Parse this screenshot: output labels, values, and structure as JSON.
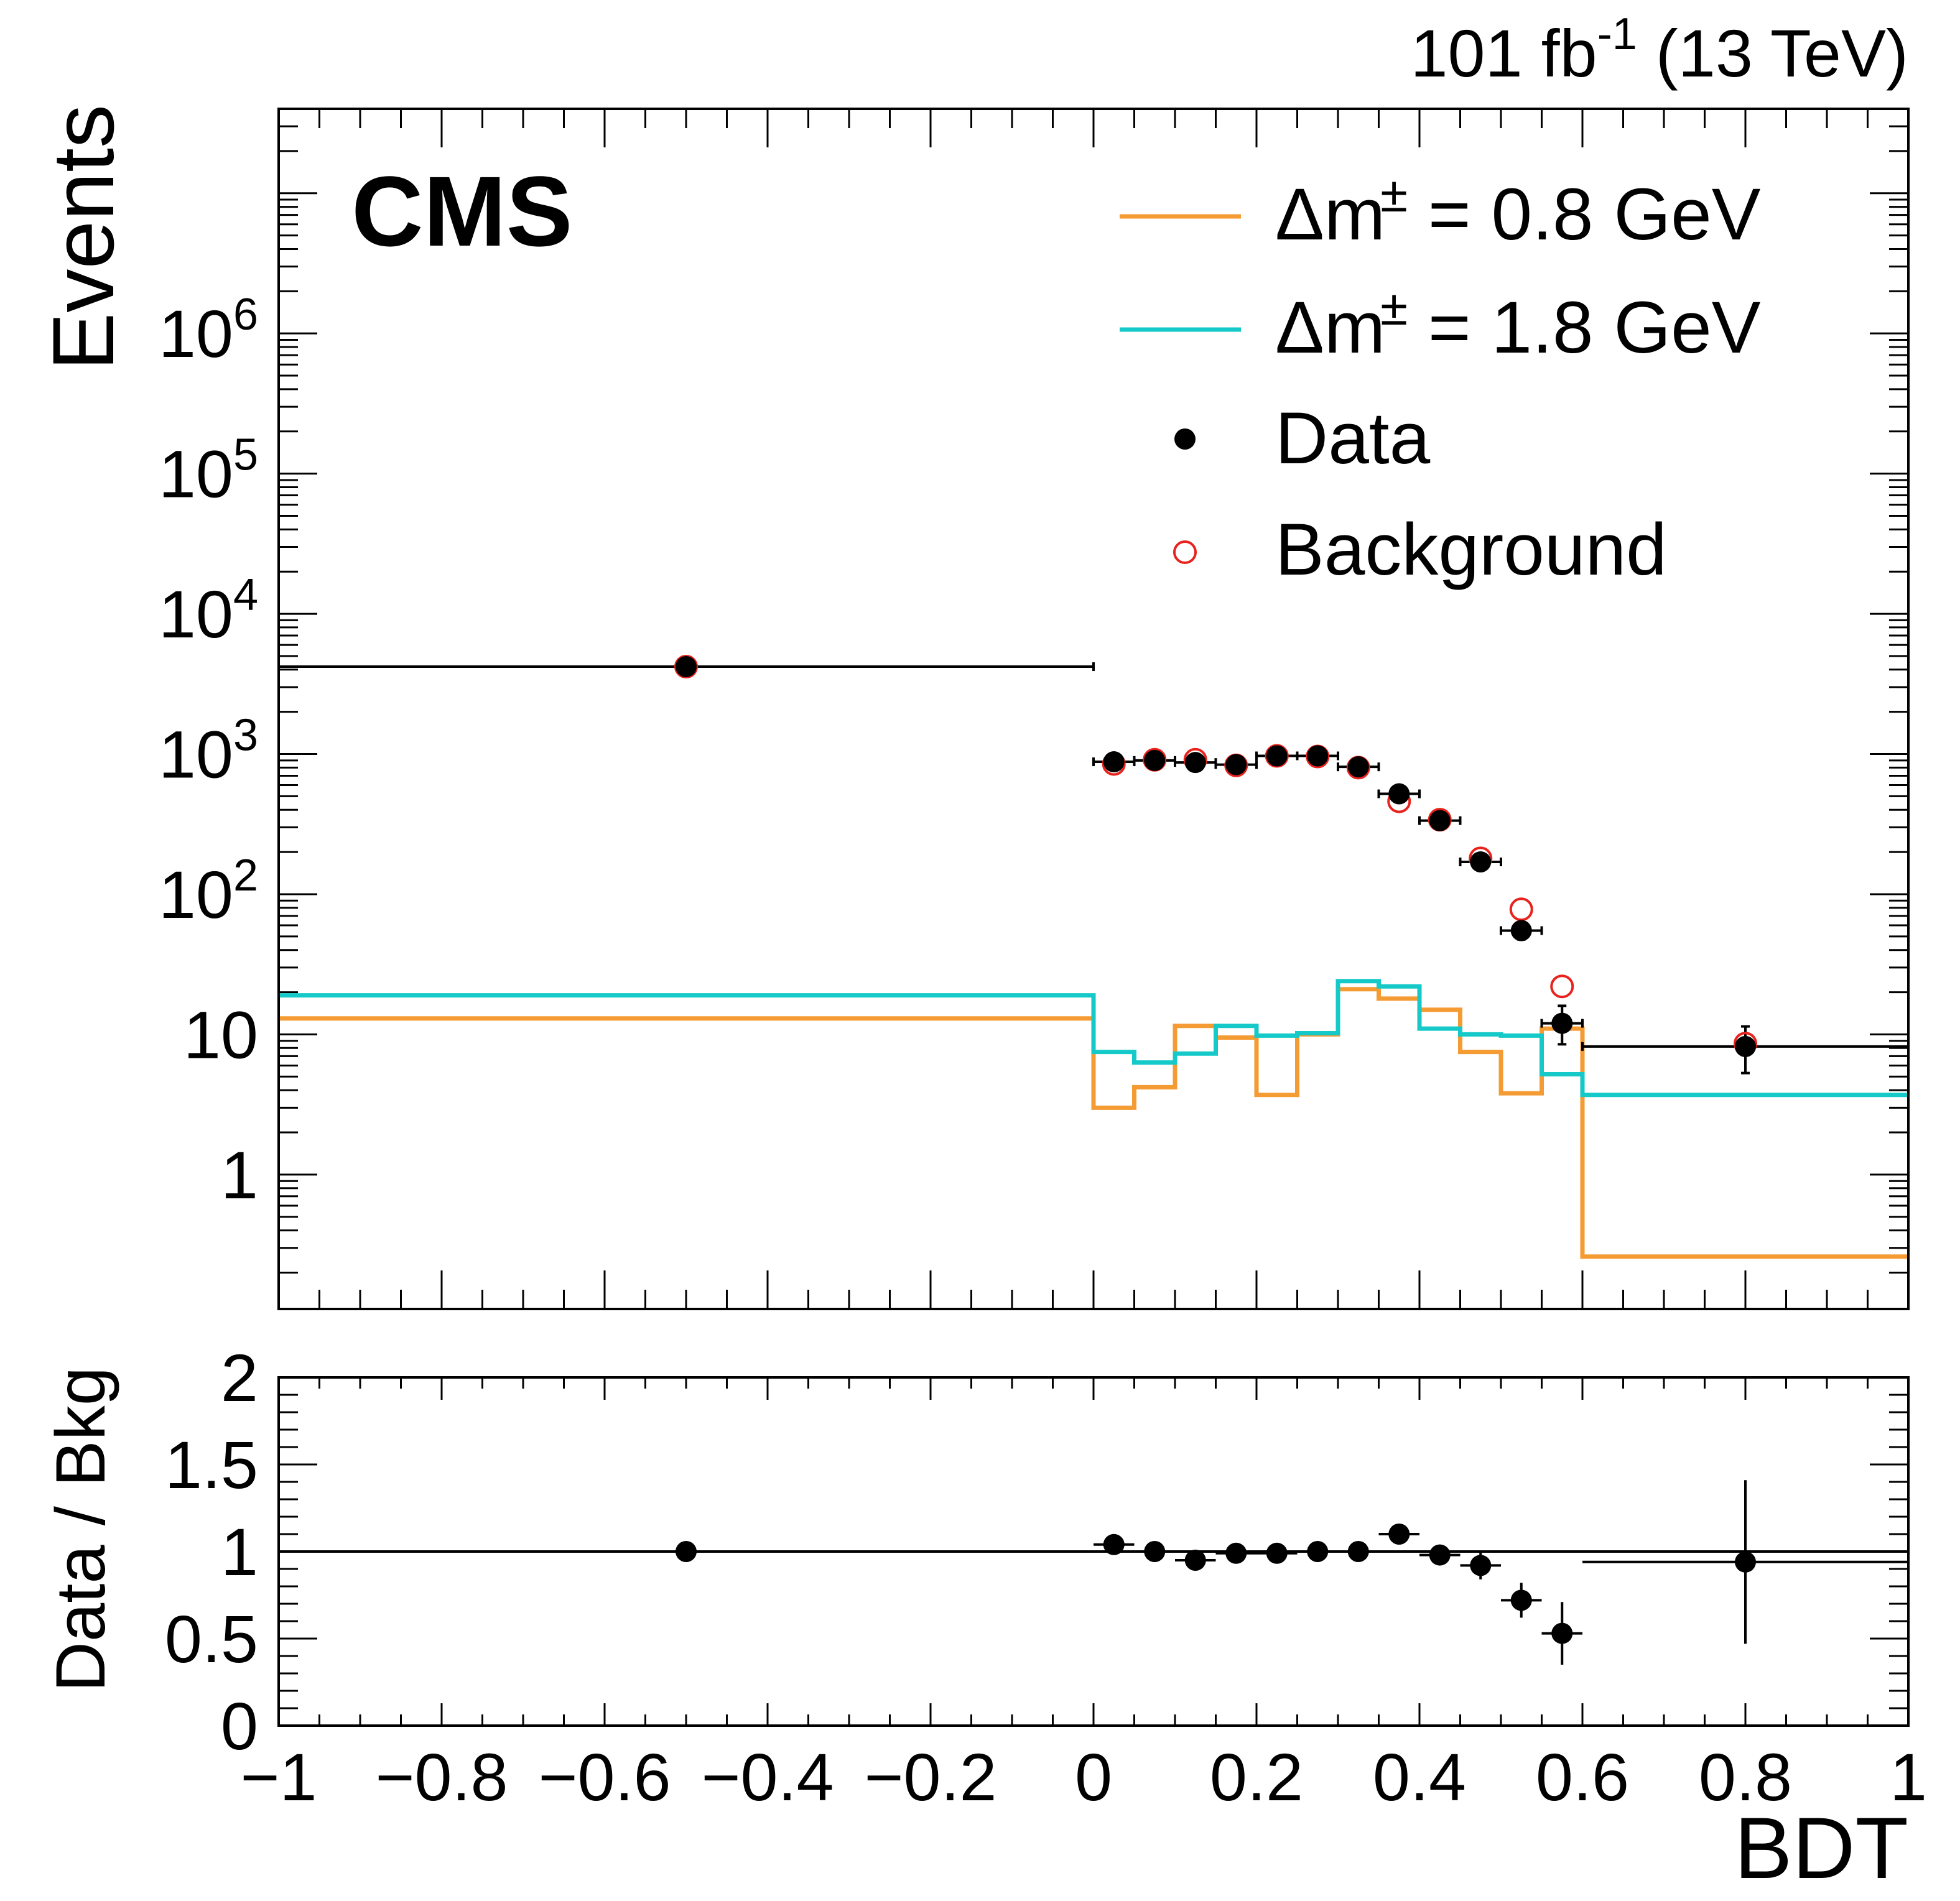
{
  "chart_data": [
    {
      "panel": "main",
      "type": "scatter",
      "title_left": "CMS",
      "lumi_label": "101 fb",
      "lumi_exp": "-1",
      "lumi_energy": " (13 TeV)",
      "ylabel": "Events",
      "xlim": [
        -1,
        1
      ],
      "ylim": [
        0.11,
        40000000
      ],
      "yscale": "log",
      "y_ticks": [
        {
          "value": 1,
          "base": "1",
          "exp": ""
        },
        {
          "value": 10,
          "base": "10",
          "exp": ""
        },
        {
          "value": 100,
          "base": "10",
          "exp": "2"
        },
        {
          "value": 1000,
          "base": "10",
          "exp": "3"
        },
        {
          "value": 10000,
          "base": "10",
          "exp": "4"
        },
        {
          "value": 100000,
          "base": "10",
          "exp": "5"
        },
        {
          "value": 1000000,
          "base": "10",
          "exp": "6"
        }
      ],
      "legend_position": "top-right",
      "series": [
        {
          "name": "signal_08",
          "legend_label": "Δm",
          "legend_sup": "±",
          "legend_suffix": " = 0.8 GeV",
          "kind": "step",
          "color": "#f59b33",
          "edges": [
            -1,
            0,
            0.05,
            0.1,
            0.15,
            0.2,
            0.25,
            0.3,
            0.35,
            0.4,
            0.45,
            0.5,
            0.55,
            0.6,
            1
          ],
          "values": [
            13,
            3.0,
            4.2,
            11.5,
            9.5,
            3.7,
            10.0,
            21,
            18,
            15,
            7.5,
            3.8,
            11,
            0.26
          ]
        },
        {
          "name": "signal_18",
          "legend_label": "Δm",
          "legend_sup": "±",
          "legend_suffix": " = 1.8 GeV",
          "kind": "step",
          "color": "#15c9c9",
          "edges": [
            -1,
            0,
            0.05,
            0.1,
            0.15,
            0.2,
            0.25,
            0.3,
            0.35,
            0.4,
            0.45,
            0.5,
            0.55,
            0.6,
            1
          ],
          "values": [
            19,
            7.5,
            6.3,
            7.3,
            11.5,
            9.8,
            10.2,
            24,
            22,
            11,
            10,
            9.8,
            5.2,
            3.7
          ]
        },
        {
          "name": "data",
          "legend_label": "Data",
          "kind": "points",
          "color": "#000000",
          "x": [
            -0.5,
            0.025,
            0.075,
            0.125,
            0.175,
            0.225,
            0.275,
            0.325,
            0.375,
            0.425,
            0.475,
            0.525,
            0.575,
            0.8
          ],
          "xerr": [
            0.5,
            0.025,
            0.025,
            0.025,
            0.025,
            0.025,
            0.025,
            0.025,
            0.025,
            0.025,
            0.025,
            0.025,
            0.025,
            0.2
          ],
          "y": [
            4200,
            880,
            900,
            870,
            840,
            970,
            970,
            810,
            520,
            335,
            170,
            55,
            12,
            8.2
          ],
          "yerr_low": [
            65,
            30,
            30,
            30,
            29,
            31,
            31,
            28,
            23,
            18,
            13,
            7.4,
            3.5,
            2.9
          ],
          "yerr_high": [
            65,
            30,
            30,
            30,
            29,
            31,
            31,
            28,
            23,
            18,
            13,
            7.4,
            4.0,
            3.2
          ]
        },
        {
          "name": "background",
          "legend_label": "Background",
          "kind": "open_points",
          "color": "#e8221c",
          "x": [
            -0.5,
            0.025,
            0.075,
            0.125,
            0.175,
            0.225,
            0.275,
            0.325,
            0.375,
            0.425,
            0.475,
            0.525,
            0.575,
            0.8
          ],
          "y": [
            4200,
            850,
            910,
            910,
            830,
            970,
            960,
            800,
            460,
            340,
            180,
            78,
            22,
            8.6
          ]
        }
      ]
    },
    {
      "panel": "ratio",
      "type": "scatter",
      "xlabel": "BDT",
      "ylabel": "Data / Bkg",
      "xlim": [
        -1,
        1
      ],
      "ylim": [
        0,
        2
      ],
      "x_ticks": [
        -1,
        -0.8,
        -0.6,
        -0.4,
        -0.2,
        0,
        0.2,
        0.4,
        0.6,
        0.8,
        1
      ],
      "x_tick_labels": [
        "−1",
        "−0.8",
        "−0.6",
        "−0.4",
        "−0.2",
        "0",
        "0.2",
        "0.4",
        "0.6",
        "0.8",
        "1"
      ],
      "y_ticks": [
        0,
        0.5,
        1,
        1.5,
        2
      ],
      "y_tick_labels": [
        "0",
        "0.5",
        "1",
        "1.5",
        "2"
      ],
      "reference_line": 1,
      "series": [
        {
          "name": "ratio",
          "color": "#000000",
          "x": [
            -0.5,
            0.025,
            0.075,
            0.125,
            0.175,
            0.225,
            0.275,
            0.325,
            0.375,
            0.425,
            0.475,
            0.525,
            0.575,
            0.8
          ],
          "xerr": [
            0.5,
            0.025,
            0.025,
            0.025,
            0.025,
            0.025,
            0.025,
            0.025,
            0.025,
            0.025,
            0.025,
            0.025,
            0.025,
            0.2
          ],
          "y": [
            1.0,
            1.04,
            1.0,
            0.95,
            0.99,
            0.99,
            1.0,
            1.0,
            1.1,
            0.98,
            0.92,
            0.72,
            0.53,
            0.94
          ],
          "yerr": [
            0.02,
            0.04,
            0.04,
            0.04,
            0.04,
            0.035,
            0.035,
            0.04,
            0.05,
            0.06,
            0.08,
            0.1,
            0.18,
            0.47
          ]
        }
      ]
    }
  ]
}
